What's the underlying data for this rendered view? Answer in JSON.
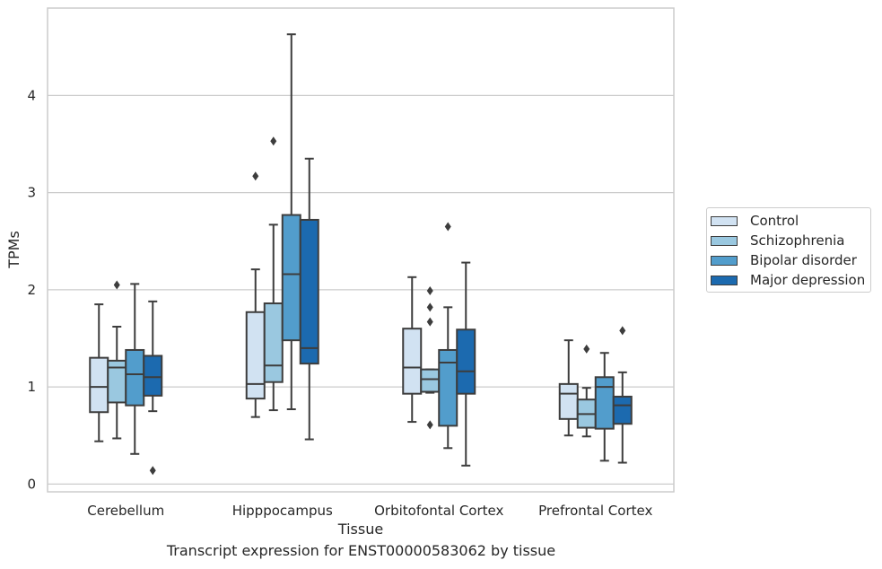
{
  "caption": "Transcript expression for ENST00000583062 by tissue",
  "chart_data": {
    "type": "box",
    "title": "",
    "xlabel": "Tissue",
    "ylabel": "TPMs",
    "ylim": [
      -0.08,
      4.9
    ],
    "yticks": [
      "0",
      "1",
      "2",
      "3",
      "4"
    ],
    "grid": "horizontal",
    "legend_position": "right",
    "categories": [
      "Cerebellum",
      "Hipppocampus",
      "Orbitofontal Cortex",
      "Prefrontal Cortex"
    ],
    "series": [
      {
        "name": "Control",
        "color": "#d1e2f2",
        "boxes": [
          {
            "whislo": 0.44,
            "q1": 0.74,
            "median": 1.0,
            "q3": 1.3,
            "whishi": 1.85,
            "fliers": []
          },
          {
            "whislo": 0.69,
            "q1": 0.88,
            "median": 1.03,
            "q3": 1.77,
            "whishi": 2.21,
            "fliers": [
              3.17
            ]
          },
          {
            "whislo": 0.64,
            "q1": 0.93,
            "median": 1.2,
            "q3": 1.6,
            "whishi": 2.13,
            "fliers": []
          },
          {
            "whislo": 0.5,
            "q1": 0.67,
            "median": 0.93,
            "q3": 1.03,
            "whishi": 1.48,
            "fliers": []
          }
        ]
      },
      {
        "name": "Schizophrenia",
        "color": "#9ac8e0",
        "boxes": [
          {
            "whislo": 0.47,
            "q1": 0.84,
            "median": 1.2,
            "q3": 1.27,
            "whishi": 1.62,
            "fliers": [
              2.05
            ]
          },
          {
            "whislo": 0.76,
            "q1": 1.05,
            "median": 1.22,
            "q3": 1.86,
            "whishi": 2.67,
            "fliers": [
              3.53
            ]
          },
          {
            "whislo": 0.94,
            "q1": 0.95,
            "median": 1.08,
            "q3": 1.18,
            "whishi": 1.18,
            "fliers": [
              0.61,
              1.67,
              1.82,
              1.99
            ]
          },
          {
            "whislo": 0.49,
            "q1": 0.58,
            "median": 0.72,
            "q3": 0.87,
            "whishi": 0.99,
            "fliers": [
              1.39
            ]
          }
        ]
      },
      {
        "name": "Bipolar disorder",
        "color": "#529dcc",
        "boxes": [
          {
            "whislo": 0.31,
            "q1": 0.81,
            "median": 1.13,
            "q3": 1.38,
            "whishi": 2.06,
            "fliers": []
          },
          {
            "whislo": 0.77,
            "q1": 1.48,
            "median": 2.16,
            "q3": 2.77,
            "whishi": 4.63,
            "fliers": []
          },
          {
            "whislo": 0.37,
            "q1": 0.6,
            "median": 1.25,
            "q3": 1.38,
            "whishi": 1.82,
            "fliers": [
              2.65
            ]
          },
          {
            "whislo": 0.24,
            "q1": 0.57,
            "median": 1.0,
            "q3": 1.1,
            "whishi": 1.35,
            "fliers": []
          }
        ]
      },
      {
        "name": "Major depression",
        "color": "#1c6aaf",
        "boxes": [
          {
            "whislo": 0.75,
            "q1": 0.91,
            "median": 1.1,
            "q3": 1.32,
            "whishi": 1.88,
            "fliers": [
              0.14
            ]
          },
          {
            "whislo": 0.46,
            "q1": 1.24,
            "median": 1.4,
            "q3": 2.72,
            "whishi": 3.35,
            "fliers": []
          },
          {
            "whislo": 0.19,
            "q1": 0.93,
            "median": 1.16,
            "q3": 1.59,
            "whishi": 2.28,
            "fliers": []
          },
          {
            "whislo": 0.22,
            "q1": 0.62,
            "median": 0.81,
            "q3": 0.9,
            "whishi": 1.15,
            "fliers": [
              1.58
            ]
          }
        ]
      }
    ]
  }
}
